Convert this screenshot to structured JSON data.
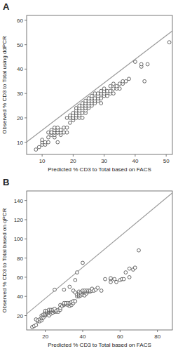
{
  "chart_data": [
    {
      "type": "scatter",
      "title": "A",
      "xlabel": "Predicted % CD3 to Total based on FACS",
      "ylabel": "Observed % CD3 to Total using ddPCR",
      "xlim": [
        5,
        52
      ],
      "ylim": [
        5,
        62
      ],
      "xticks": [
        10,
        20,
        30,
        40,
        50
      ],
      "yticks": [
        10,
        20,
        30,
        40,
        50,
        60
      ],
      "series": [
        {
          "type": "line",
          "color": "#999999",
          "x": [
            5,
            52
          ],
          "values": [
            10.11,
            55.7
          ]
        },
        {
          "type": "scatter",
          "color": "#444444",
          "marker": "circle",
          "x": [
            8,
            9,
            10,
            10,
            10,
            11,
            11,
            12,
            12,
            12,
            13,
            13,
            13,
            13,
            14,
            14,
            14,
            14,
            14,
            14,
            15,
            15,
            15,
            15,
            15,
            16,
            16,
            16,
            17,
            17,
            18,
            18,
            18,
            19,
            19,
            19,
            20,
            20,
            20,
            20,
            20,
            21,
            21,
            21,
            21,
            21,
            22,
            22,
            22,
            22,
            22,
            22,
            23,
            23,
            23,
            23,
            23,
            24,
            24,
            24,
            24,
            24,
            24,
            25,
            25,
            25,
            25,
            25,
            26,
            26,
            26,
            26,
            26,
            27,
            27,
            27,
            27,
            28,
            28,
            28,
            28,
            29,
            29,
            29,
            29,
            30,
            30,
            30,
            30,
            31,
            31,
            32,
            32,
            32,
            33,
            33,
            33,
            34,
            34,
            35,
            35,
            36,
            36,
            37,
            38,
            40,
            42,
            42,
            43,
            44,
            51
          ],
          "values": [
            7,
            8,
            9,
            10,
            11,
            9,
            10,
            10,
            12,
            14,
            13,
            14,
            15,
            14,
            12,
            13,
            14,
            14,
            15,
            16,
            10,
            14,
            14,
            15,
            16,
            13,
            14,
            15,
            14,
            16,
            14,
            16,
            20,
            18,
            20,
            21,
            19,
            20,
            20,
            21,
            22,
            20,
            21,
            22,
            23,
            24,
            20,
            21,
            22,
            23,
            24,
            25,
            20,
            22,
            24,
            25,
            26,
            22,
            23,
            24,
            25,
            26,
            27,
            24,
            25,
            26,
            27,
            28,
            25,
            26,
            27,
            28,
            29,
            26,
            27,
            28,
            30,
            27,
            28,
            29,
            30,
            26,
            28,
            30,
            31,
            29,
            30,
            31,
            32,
            29,
            31,
            30,
            31,
            33,
            30,
            32,
            34,
            32,
            33,
            32,
            34,
            34,
            35,
            35,
            36,
            43,
            41,
            42,
            35,
            42,
            51
          ]
        }
      ]
    },
    {
      "type": "scatter",
      "title": "B",
      "xlabel": "Predicted % CD3 to Total based on FACS",
      "ylabel": "Observed % CD3 to Total based on qPCR",
      "xlim": [
        10,
        88
      ],
      "ylim": [
        5,
        150
      ],
      "xticks": [
        20,
        40,
        60,
        80
      ],
      "yticks": [
        20,
        40,
        60,
        80,
        100,
        120,
        140
      ],
      "series": [
        {
          "type": "line",
          "color": "#999999",
          "x": [
            10,
            88
          ],
          "values": [
            21.73,
            148.09
          ]
        },
        {
          "type": "scatter",
          "color": "#444444",
          "marker": "circle",
          "x": [
            13,
            14,
            15,
            15,
            16,
            16,
            17,
            17,
            18,
            18,
            18,
            18,
            19,
            19,
            19,
            20,
            20,
            20,
            20,
            20,
            21,
            21,
            21,
            21,
            22,
            22,
            22,
            22,
            22,
            23,
            23,
            23,
            23,
            24,
            24,
            24,
            25,
            25,
            25,
            25,
            26,
            26,
            27,
            27,
            28,
            28,
            28,
            29,
            30,
            30,
            30,
            31,
            31,
            32,
            32,
            33,
            33,
            33,
            34,
            34,
            34,
            35,
            35,
            35,
            36,
            36,
            37,
            37,
            38,
            38,
            38,
            38,
            39,
            39,
            39,
            40,
            40,
            40,
            40,
            41,
            41,
            41,
            41,
            42,
            42,
            42,
            43,
            43,
            44,
            44,
            45,
            45,
            46,
            47,
            48,
            50,
            52,
            55,
            55,
            55,
            57,
            58,
            60,
            61,
            62,
            63,
            65,
            65,
            67,
            68,
            40,
            37,
            36,
            33,
            30,
            25,
            70
          ],
          "values": [
            8,
            9,
            10,
            16,
            14,
            15,
            14,
            16,
            15,
            17,
            18,
            20,
            18,
            20,
            21,
            20,
            21,
            22,
            24,
            25,
            22,
            23,
            24,
            25,
            20,
            23,
            24,
            25,
            26,
            22,
            24,
            25,
            26,
            23,
            25,
            26,
            24,
            25,
            26,
            27,
            24,
            25,
            24,
            26,
            26,
            28,
            31,
            30,
            31,
            32,
            33,
            32,
            33,
            31,
            33,
            30,
            32,
            33,
            31,
            33,
            34,
            33,
            35,
            46,
            35,
            44,
            40,
            42,
            40,
            41,
            43,
            45,
            41,
            43,
            44,
            42,
            44,
            45,
            46,
            41,
            44,
            45,
            46,
            43,
            45,
            46,
            45,
            46,
            45,
            46,
            46,
            48,
            46,
            47,
            49,
            46,
            58,
            55,
            58,
            59,
            58,
            55,
            57,
            58,
            58,
            65,
            60,
            69,
            68,
            70,
            75,
            65,
            57,
            50,
            47,
            47,
            88
          ]
        }
      ]
    }
  ]
}
